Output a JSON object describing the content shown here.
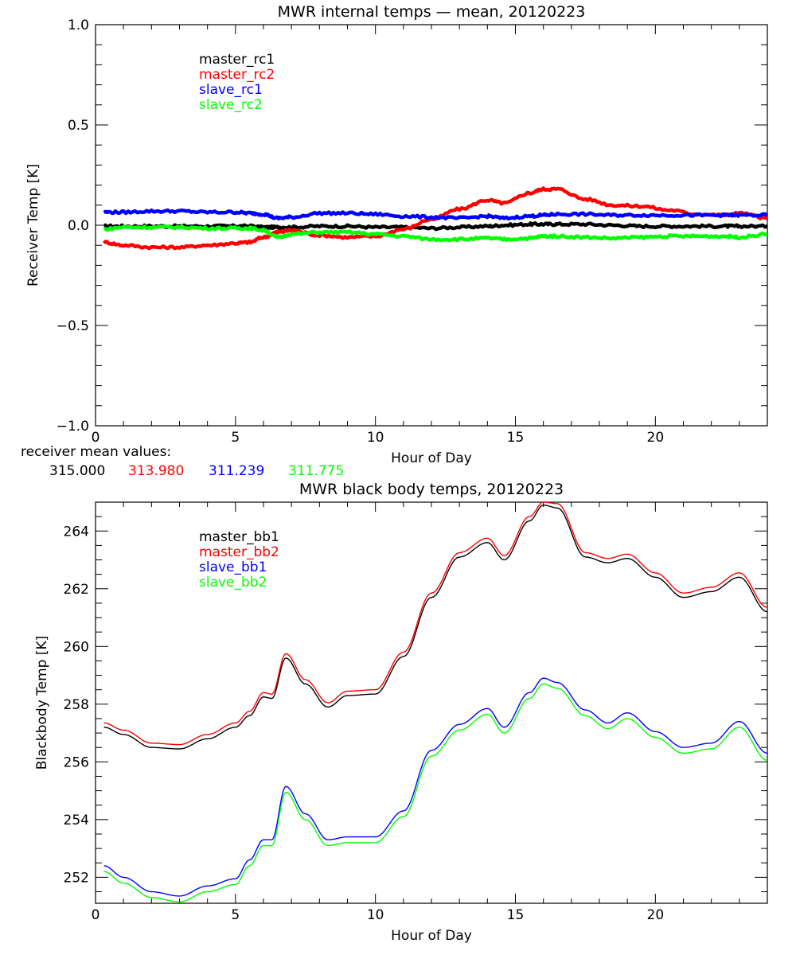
{
  "chart_data": [
    {
      "type": "line",
      "title": "MWR internal temps — mean, 20120223",
      "xlabel": "Hour of Day",
      "ylabel": "Receiver Temp [K]",
      "xlim": [
        0,
        24
      ],
      "ylim": [
        -1.0,
        1.0
      ],
      "xticks": [
        0,
        5,
        10,
        15,
        20
      ],
      "xtick_labels": [
        "0",
        "5",
        "10",
        "15",
        "20"
      ],
      "yticks": [
        -1.0,
        -0.5,
        0.0,
        0.5,
        1.0
      ],
      "ytick_labels": [
        "−1.0",
        "−0.5",
        "0.0",
        "0.5",
        "1.0"
      ],
      "grid": false,
      "legend_position": "top-left",
      "x": [
        0.3,
        1,
        2,
        3,
        4,
        5,
        5.5,
        6,
        6.5,
        7,
        8,
        9,
        10,
        11,
        12,
        13,
        14,
        14.6,
        15.5,
        16,
        16.5,
        17.5,
        18.5,
        19.5,
        20.5,
        21.5,
        22.5,
        23,
        24
      ],
      "series": [
        {
          "name": "master_rc1",
          "color": "#000000",
          "values": [
            -0.005,
            -0.005,
            -0.005,
            -0.005,
            -0.005,
            -0.005,
            -0.005,
            -0.01,
            -0.01,
            -0.01,
            -0.005,
            -0.005,
            -0.01,
            -0.01,
            -0.015,
            -0.01,
            -0.005,
            0.0,
            0.005,
            0.005,
            0.005,
            0.005,
            0.0,
            -0.005,
            -0.005,
            -0.005,
            -0.005,
            -0.005,
            -0.005
          ]
        },
        {
          "name": "master_rc2",
          "color": "#ff0000",
          "values": [
            -0.085,
            -0.1,
            -0.11,
            -0.11,
            -0.1,
            -0.09,
            -0.085,
            -0.06,
            -0.035,
            -0.025,
            -0.05,
            -0.06,
            -0.055,
            -0.02,
            0.03,
            0.08,
            0.125,
            0.11,
            0.16,
            0.18,
            0.18,
            0.13,
            0.1,
            0.095,
            0.075,
            0.055,
            0.05,
            0.06,
            0.035
          ]
        },
        {
          "name": "slave_rc1",
          "color": "#0000ff",
          "values": [
            0.065,
            0.065,
            0.07,
            0.07,
            0.065,
            0.065,
            0.06,
            0.055,
            0.035,
            0.04,
            0.06,
            0.06,
            0.055,
            0.045,
            0.04,
            0.035,
            0.045,
            0.035,
            0.045,
            0.05,
            0.055,
            0.055,
            0.05,
            0.05,
            0.05,
            0.05,
            0.05,
            0.05,
            0.05
          ]
        },
        {
          "name": "slave_rc2",
          "color": "#00ff00",
          "values": [
            -0.02,
            -0.01,
            -0.01,
            -0.01,
            -0.015,
            -0.015,
            -0.015,
            -0.025,
            -0.06,
            -0.045,
            -0.035,
            -0.035,
            -0.045,
            -0.055,
            -0.07,
            -0.07,
            -0.065,
            -0.07,
            -0.065,
            -0.055,
            -0.055,
            -0.06,
            -0.065,
            -0.06,
            -0.055,
            -0.055,
            -0.055,
            -0.06,
            -0.045
          ]
        }
      ],
      "footer": {
        "label": "receiver mean values:",
        "values": [
          {
            "text": "315.000",
            "color": "#000000"
          },
          {
            "text": "313.980",
            "color": "#ff0000"
          },
          {
            "text": "311.239",
            "color": "#0000ff"
          },
          {
            "text": "311.775",
            "color": "#00ff00"
          }
        ]
      }
    },
    {
      "type": "line",
      "title": "MWR black body temps, 20120223",
      "xlabel": "Hour of Day",
      "ylabel": "Blackbody Temp [K]",
      "xlim": [
        0,
        24
      ],
      "ylim": [
        251.1,
        265.0
      ],
      "xticks": [
        0,
        5,
        10,
        15,
        20
      ],
      "xtick_labels": [
        "0",
        "5",
        "10",
        "15",
        "20"
      ],
      "yticks": [
        252,
        254,
        256,
        258,
        260,
        262,
        264
      ],
      "ytick_labels": [
        "252",
        "254",
        "256",
        "258",
        "260",
        "262",
        "264"
      ],
      "grid": false,
      "legend_position": "top-left",
      "x": [
        0.3,
        1,
        2,
        3,
        4,
        5,
        5.5,
        6,
        6.3,
        6.8,
        7.5,
        8.3,
        9,
        10,
        11,
        12,
        13,
        14,
        14.6,
        15.5,
        16,
        16.5,
        17.5,
        18.3,
        19,
        20,
        21,
        22,
        23,
        24
      ],
      "series": [
        {
          "name": "master_bb1",
          "color": "#000000",
          "values": [
            257.2,
            256.95,
            256.5,
            256.45,
            256.8,
            257.2,
            257.6,
            258.25,
            258.2,
            259.6,
            258.7,
            257.9,
            258.3,
            258.35,
            259.65,
            261.7,
            263.1,
            263.6,
            263.0,
            264.35,
            264.9,
            264.8,
            263.1,
            262.9,
            263.05,
            262.4,
            261.7,
            261.9,
            262.4,
            261.2
          ]
        },
        {
          "name": "master_bb2",
          "color": "#ff0000",
          "values": [
            257.35,
            257.1,
            256.65,
            256.6,
            256.95,
            257.35,
            257.75,
            258.4,
            258.35,
            259.75,
            258.85,
            258.05,
            258.45,
            258.5,
            259.8,
            261.85,
            263.25,
            263.75,
            263.15,
            264.5,
            265.0,
            264.95,
            263.25,
            263.05,
            263.2,
            262.55,
            261.85,
            262.05,
            262.55,
            261.35
          ]
        },
        {
          "name": "slave_bb1",
          "color": "#0000ff",
          "values": [
            252.4,
            252.0,
            251.5,
            251.35,
            251.7,
            251.95,
            252.6,
            253.3,
            253.3,
            255.15,
            254.2,
            253.3,
            253.4,
            253.4,
            254.3,
            256.4,
            257.3,
            257.85,
            257.2,
            258.4,
            258.9,
            258.75,
            257.8,
            257.35,
            257.7,
            257.05,
            256.5,
            256.65,
            257.4,
            256.3
          ]
        },
        {
          "name": "slave_bb2",
          "color": "#00ff00",
          "values": [
            252.2,
            251.8,
            251.3,
            251.15,
            251.5,
            251.75,
            252.4,
            253.1,
            253.1,
            254.95,
            254.0,
            253.1,
            253.2,
            253.2,
            254.1,
            256.2,
            257.1,
            257.65,
            257.0,
            258.2,
            258.7,
            258.55,
            257.6,
            257.15,
            257.5,
            256.85,
            256.3,
            256.45,
            257.2,
            256.05
          ]
        }
      ]
    }
  ]
}
